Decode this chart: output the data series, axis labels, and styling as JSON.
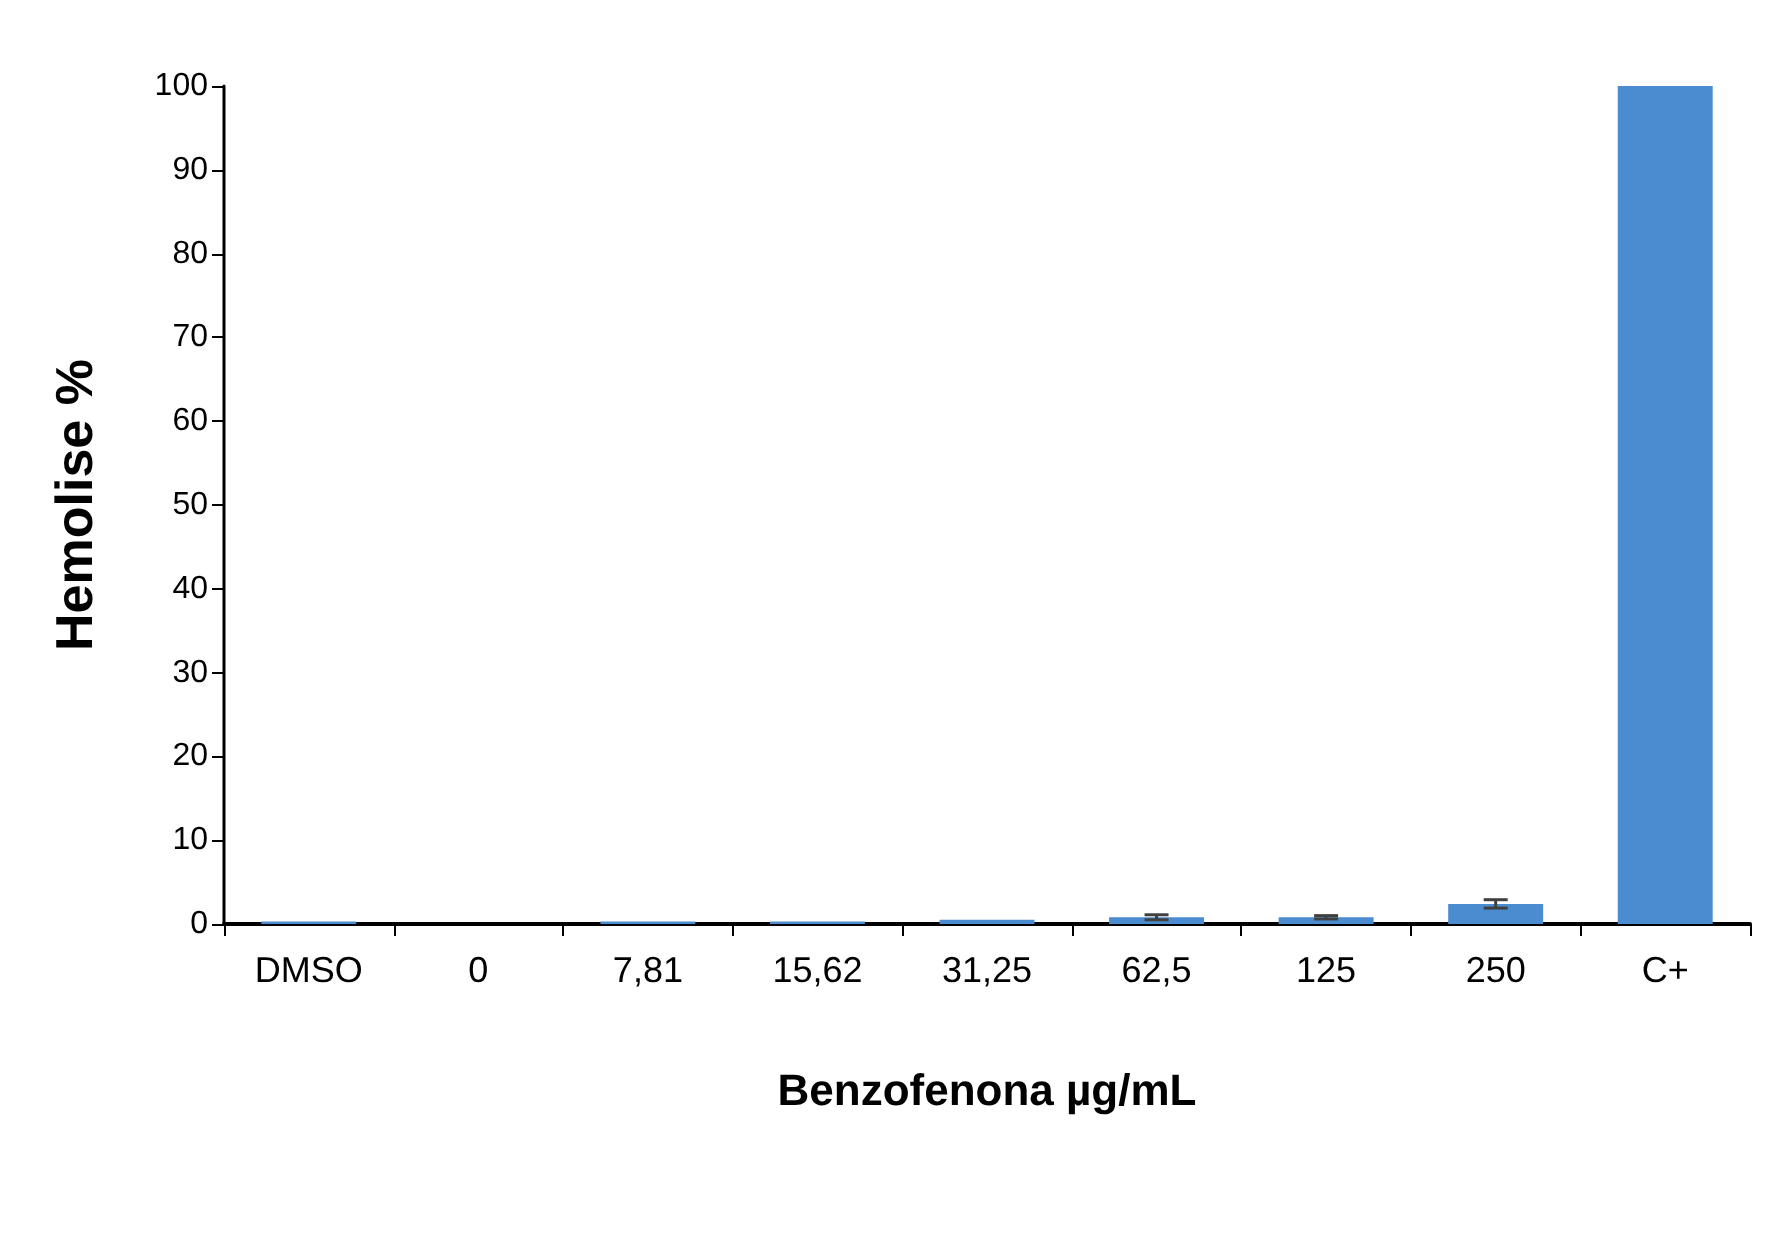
{
  "chart_data": {
    "type": "bar",
    "xlabel": "Benzofenona µg/mL",
    "ylabel": "Hemolise %",
    "categories": [
      "DMSO",
      "0",
      "7,81",
      "15,62",
      "31,25",
      "62,5",
      "125",
      "250",
      "C+"
    ],
    "values": [
      0.3,
      0,
      0.3,
      0.3,
      0.5,
      0.8,
      0.8,
      2.4,
      100
    ],
    "errors": [
      null,
      null,
      null,
      null,
      null,
      0.3,
      0.2,
      0.5,
      null
    ],
    "color": "#4a8ccf",
    "ylim": [
      0,
      100
    ],
    "yticks": [
      0,
      10,
      20,
      30,
      40,
      50,
      60,
      70,
      80,
      90,
      100
    ],
    "grid": false
  }
}
